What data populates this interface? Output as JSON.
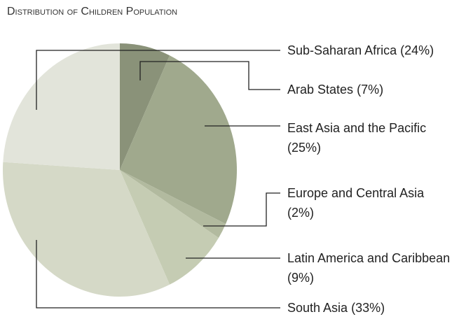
{
  "chart_data": {
    "type": "pie",
    "title": "Distribution of Children Population",
    "categories": [
      "Arab States",
      "East Asia and the Pacific",
      "Europe and Central Asia",
      "Latin America and Caribbean",
      "South Asia",
      "Sub-Saharan Africa"
    ],
    "values": [
      7,
      25,
      2,
      9,
      33,
      24
    ],
    "value_labels": [
      "(7%)",
      "(25%)",
      "(2%)",
      "(9%)",
      "(33%)",
      "(24%)"
    ],
    "colors": [
      "#8a9279",
      "#a0a98d",
      "#b2ba9f",
      "#c5ccb3",
      "#d5d9c7",
      "#e2e4da"
    ]
  }
}
